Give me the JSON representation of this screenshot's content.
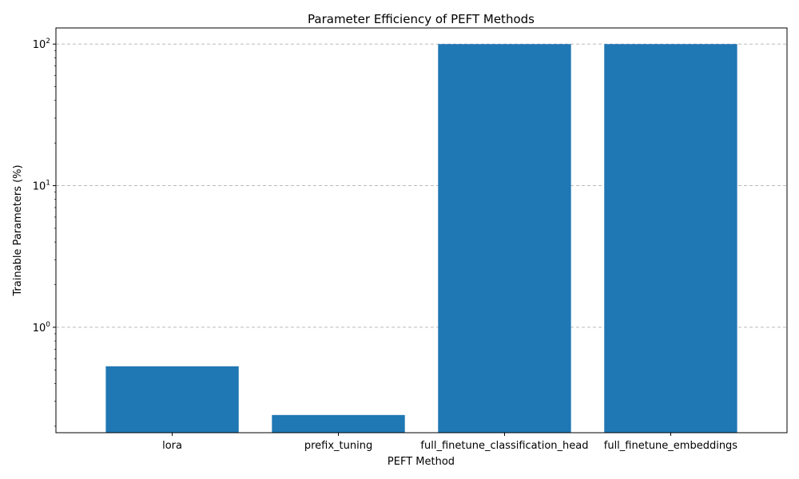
{
  "chart_data": {
    "type": "bar",
    "title": "Parameter Efficiency of PEFT Methods",
    "xlabel": "PEFT Method",
    "ylabel": "Trainable Parameters (%)",
    "yscale": "log",
    "ylim": [
      0.18,
      130
    ],
    "grid": "y-major-dashed",
    "bar_color": "#1f77b4",
    "categories": [
      "lora",
      "prefix_tuning",
      "full_finetune_classification_head",
      "full_finetune_embeddings"
    ],
    "values": [
      0.53,
      0.24,
      100,
      100
    ],
    "yticks": [
      {
        "value": 1,
        "base": "10",
        "exp": "0"
      },
      {
        "value": 10,
        "base": "10",
        "exp": "1"
      },
      {
        "value": 100,
        "base": "10",
        "exp": "2"
      }
    ]
  }
}
